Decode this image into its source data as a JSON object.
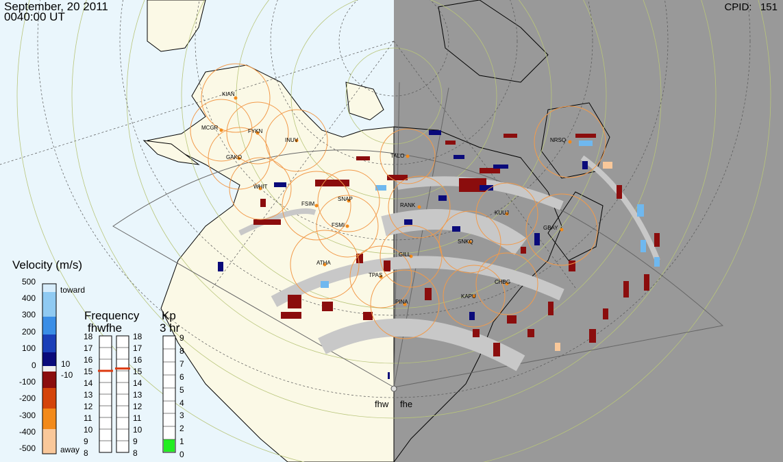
{
  "header": {
    "date": "September, 20 2011",
    "time": "0040:00 UT",
    "cpid_label": "CPID:",
    "cpid_value": "151"
  },
  "radars": [
    "fhw",
    "fhe"
  ],
  "stations": [
    "KIAN",
    "MCGR",
    "FYKN",
    "INUV",
    "GAKO",
    "TALO",
    "NRSQ",
    "WHIT",
    "FSIM",
    "SNAP",
    "FSMI",
    "RANK",
    "KUUJ",
    "GBAY",
    "SNKQ",
    "ATHA",
    "GILL",
    "TPAS",
    "CHBG",
    "PINA",
    "KAPU"
  ],
  "velocity_scale": {
    "title": "Velocity (m/s)",
    "ticks": [
      "500",
      "400",
      "300",
      "200",
      "100",
      "0",
      "-100",
      "-200",
      "-300",
      "-400",
      "-500"
    ],
    "toward_label": "toward",
    "away_label": "away",
    "threshold_pos": "10",
    "threshold_neg": "-10"
  },
  "frequency": {
    "title": "Frequency",
    "radars": "fhwfhe",
    "left_ticks": [
      "18",
      "17",
      "16",
      "15",
      "14",
      "13",
      "12",
      "11",
      "10",
      "9",
      "8"
    ],
    "right_ticks": [
      "18",
      "17",
      "16",
      "15",
      "14",
      "13",
      "12",
      "11",
      "10",
      "9",
      "8"
    ],
    "fhw_mhz": 15,
    "fhe_mhz": 15.2
  },
  "kp": {
    "title": "Kp",
    "subtitle": "3 hr",
    "ticks": [
      "9",
      "8",
      "7",
      "6",
      "5",
      "4",
      "3",
      "2",
      "1",
      "0"
    ],
    "value": 1
  },
  "colors": {
    "ocean_day": "#eaf6fc",
    "land_day": "#fbf9e6",
    "night": "#999999",
    "fov_gray": "#c8c8c8",
    "station_circle": "#f29a4a",
    "kp_fill": "#22ee22",
    "freq_marker": "#dd3a10"
  }
}
